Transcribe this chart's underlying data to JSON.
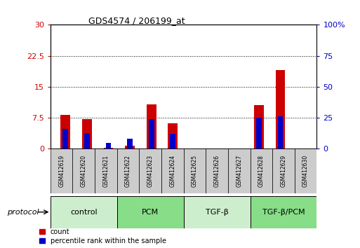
{
  "title": "GDS4574 / 206199_at",
  "samples": [
    "GSM412619",
    "GSM412620",
    "GSM412621",
    "GSM412622",
    "GSM412623",
    "GSM412624",
    "GSM412625",
    "GSM412626",
    "GSM412627",
    "GSM412628",
    "GSM412629",
    "GSM412630"
  ],
  "count_values": [
    8.2,
    7.2,
    0.3,
    0.8,
    10.8,
    6.2,
    0.15,
    0.15,
    0.15,
    10.5,
    19.0,
    0.15
  ],
  "percentile_values": [
    4.8,
    3.8,
    1.5,
    2.5,
    7.2,
    3.6,
    0.0,
    0.0,
    0.0,
    7.5,
    7.8,
    0.0
  ],
  "groups": [
    {
      "label": "control",
      "start": 0,
      "end": 3,
      "color": "#cceecc"
    },
    {
      "label": "PCM",
      "start": 3,
      "end": 6,
      "color": "#88dd88"
    },
    {
      "label": "TGF-β",
      "start": 6,
      "end": 9,
      "color": "#cceecc"
    },
    {
      "label": "TGF-β/PCM",
      "start": 9,
      "end": 12,
      "color": "#88dd88"
    }
  ],
  "left_ylim": [
    0,
    30
  ],
  "right_ylim": [
    0,
    100
  ],
  "left_yticks": [
    0,
    7.5,
    15,
    22.5,
    30
  ],
  "right_yticks": [
    0,
    25,
    50,
    75,
    100
  ],
  "left_yticklabels": [
    "0",
    "7.5",
    "15",
    "22.5",
    "30"
  ],
  "right_yticklabels": [
    "0",
    "25",
    "50",
    "75",
    "100%"
  ],
  "count_color": "#cc0000",
  "percentile_color": "#0000cc",
  "bar_width": 0.45,
  "blue_bar_width": 0.25,
  "protocol_label": "protocol",
  "legend_count": "count",
  "legend_percentile": "percentile rank within the sample",
  "bg_color": "#ffffff",
  "plot_bg_color": "#ffffff",
  "sample_box_color": "#cccccc"
}
